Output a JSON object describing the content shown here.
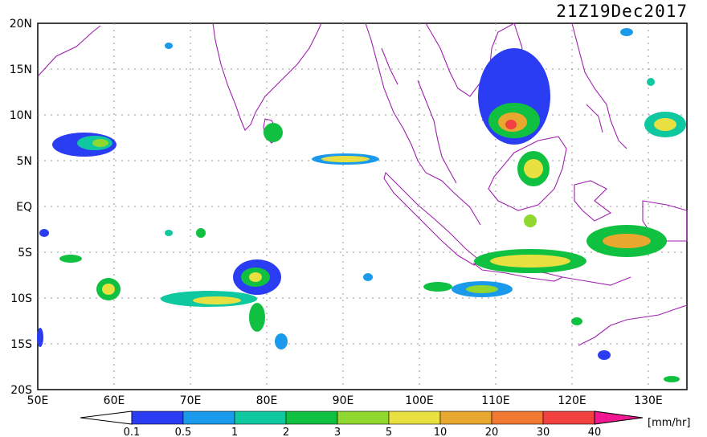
{
  "timestamp": "21Z19Dec2017",
  "lat_labels": [
    "20N",
    "15N",
    "10N",
    "5N",
    "EQ",
    "5S",
    "10S",
    "15S",
    "20S"
  ],
  "lon_labels": [
    "50E",
    "60E",
    "70E",
    "80E",
    "90E",
    "100E",
    "110E",
    "120E",
    "130E"
  ],
  "colorbar": {
    "unit": "[mm/hr]",
    "ticks": [
      "0.1",
      "0.5",
      "1",
      "2",
      "3",
      "5",
      "10",
      "20",
      "30",
      "40"
    ],
    "colors": [
      "#2b3df2",
      "#1b9aec",
      "#10c8a0",
      "#10c040",
      "#90d830",
      "#e8e040",
      "#e8a830",
      "#f07830",
      "#f04040"
    ],
    "under_color": "#ffffff",
    "over_color": "#f01890"
  },
  "colors": {
    "coastline": "#a020b0",
    "grid": "#9a9a9a"
  }
}
